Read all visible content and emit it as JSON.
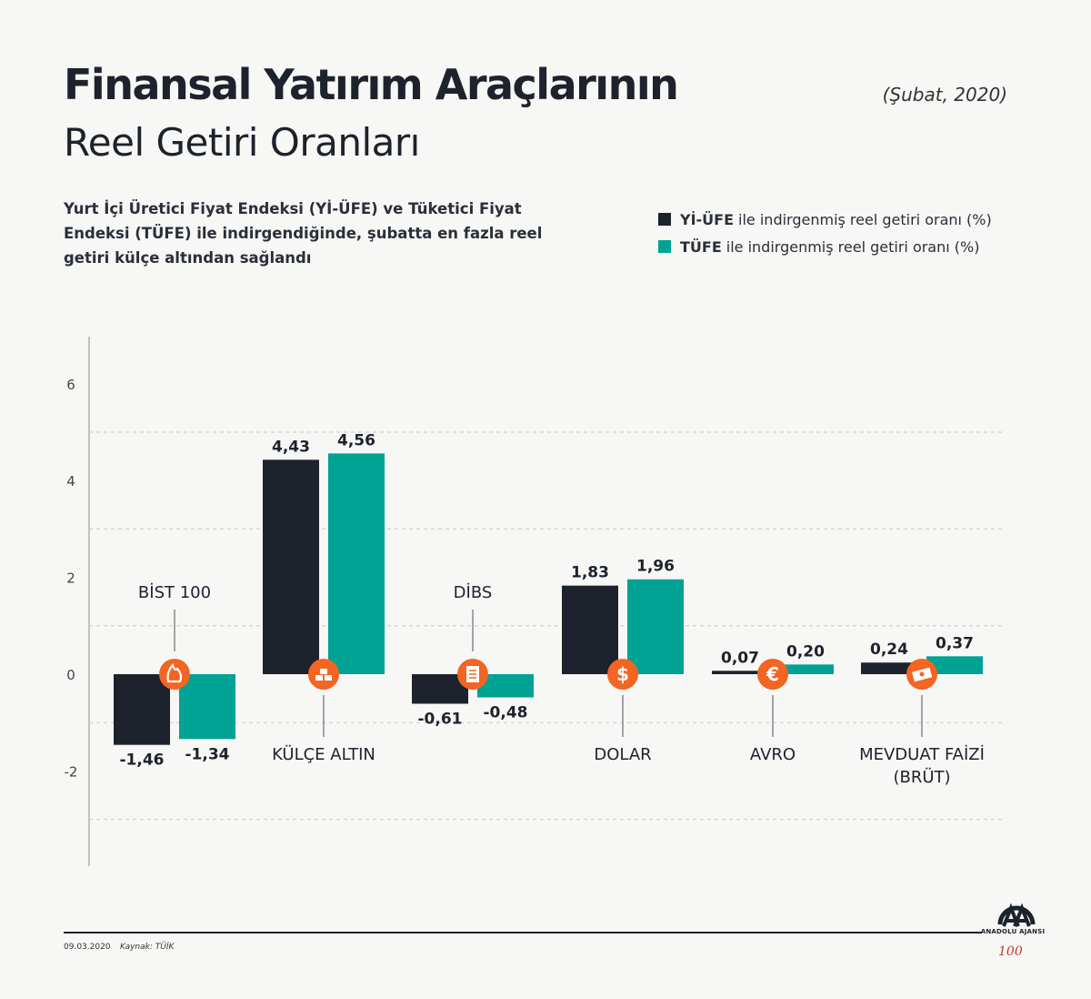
{
  "header": {
    "title_bold": "Finansal Yatırım Araçlarının",
    "title_light": "Reel Getiri Oranları",
    "date": "(Şubat, 2020)",
    "subtitle": "Yurt İçi Üretici Fiyat Endeksi (Yİ-ÜFE) ve Tüketici Fiyat Endeksi (TÜFE) ile indirgendiğinde, şubatta en fazla reel getiri külçe altından sağlandı"
  },
  "legend": {
    "items": [
      {
        "key": "Yİ-ÜFE",
        "text": "ile indirgenmiş reel getiri oranı (%)",
        "color": "#1d222c"
      },
      {
        "key": "TÜFE",
        "text": "ile indirgenmiş reel getiri oranı (%)",
        "color": "#00a294"
      }
    ]
  },
  "colors": {
    "accent": "#f26522",
    "dark": "#1d222c",
    "teal": "#00a294"
  },
  "chart_data": {
    "type": "bar",
    "categories": [
      {
        "label": "BİST 100",
        "icon": "fire-icon"
      },
      {
        "label": "KÜLÇE ALTIN",
        "icon": "gold-bars-icon"
      },
      {
        "label": "DİBS",
        "icon": "document-icon"
      },
      {
        "label": "DOLAR",
        "icon": "dollar-icon"
      },
      {
        "label": "AVRO",
        "icon": "euro-icon"
      },
      {
        "label": "MEVDUAT FAİZİ (BRÜT)",
        "icon": "banknote-icon"
      }
    ],
    "series": [
      {
        "name": "Yİ-ÜFE",
        "values": [
          -1.46,
          4.43,
          -0.61,
          1.83,
          0.07,
          0.24
        ],
        "labels": [
          "-1,46",
          "4,43",
          "-0,61",
          "1,83",
          "0,07",
          "0,24"
        ]
      },
      {
        "name": "TÜFE",
        "values": [
          -1.34,
          4.56,
          -0.48,
          1.96,
          0.2,
          0.37
        ],
        "labels": [
          "-1,34",
          "4,56",
          "-0,48",
          "1,96",
          "0,20",
          "0,37"
        ]
      }
    ],
    "yticks": [
      6,
      4,
      2,
      0,
      -2
    ],
    "ylim": [
      -4,
      6
    ],
    "grid": true
  },
  "footer": {
    "date": "09.03.2020",
    "source": "Kaynak: TÜİK",
    "logo_text": "ANADOLU AJANSI"
  }
}
